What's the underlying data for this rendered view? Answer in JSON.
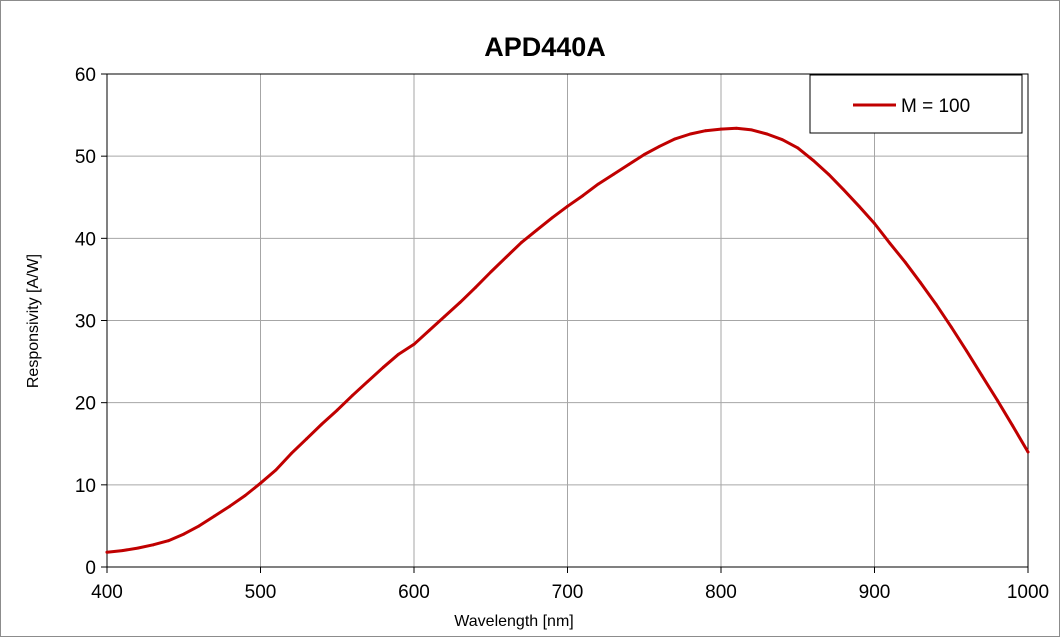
{
  "chart_data": {
    "type": "line",
    "title": "APD440A",
    "xlabel": "Wavelength [nm]",
    "ylabel": "Responsivity [A/W]",
    "xlim": [
      400,
      1000
    ],
    "ylim": [
      0,
      60
    ],
    "xticks": [
      400,
      500,
      600,
      700,
      800,
      900,
      1000
    ],
    "yticks": [
      0,
      10,
      20,
      30,
      40,
      50,
      60
    ],
    "grid": true,
    "legend": "top-right",
    "colors": {
      "series": "#c00000",
      "grid": "#a6a6a6",
      "axis": "#000000"
    },
    "series": [
      {
        "name": "M = 100",
        "x": [
          400,
          410,
          420,
          430,
          440,
          450,
          460,
          470,
          480,
          490,
          500,
          510,
          520,
          530,
          540,
          550,
          560,
          570,
          580,
          590,
          600,
          610,
          620,
          630,
          640,
          650,
          660,
          670,
          680,
          690,
          700,
          710,
          720,
          730,
          740,
          750,
          760,
          770,
          780,
          790,
          800,
          810,
          820,
          830,
          840,
          850,
          860,
          870,
          880,
          890,
          900,
          910,
          920,
          930,
          940,
          950,
          960,
          970,
          980,
          990,
          1000
        ],
        "y": [
          1.8,
          2.0,
          2.3,
          2.7,
          3.2,
          4.0,
          5.0,
          6.2,
          7.4,
          8.7,
          10.2,
          11.8,
          13.8,
          15.6,
          17.4,
          19.1,
          20.9,
          22.6,
          24.3,
          25.9,
          27.1,
          28.8,
          30.5,
          32.2,
          34.0,
          35.9,
          37.7,
          39.5,
          41.0,
          42.5,
          43.9,
          45.2,
          46.6,
          47.8,
          49.0,
          50.2,
          51.2,
          52.1,
          52.7,
          53.1,
          53.3,
          53.4,
          53.2,
          52.7,
          52.0,
          51.0,
          49.5,
          47.8,
          45.9,
          43.9,
          41.8,
          39.4,
          37.1,
          34.6,
          32.0,
          29.2,
          26.3,
          23.3,
          20.3,
          17.2,
          14.0
        ]
      }
    ]
  }
}
